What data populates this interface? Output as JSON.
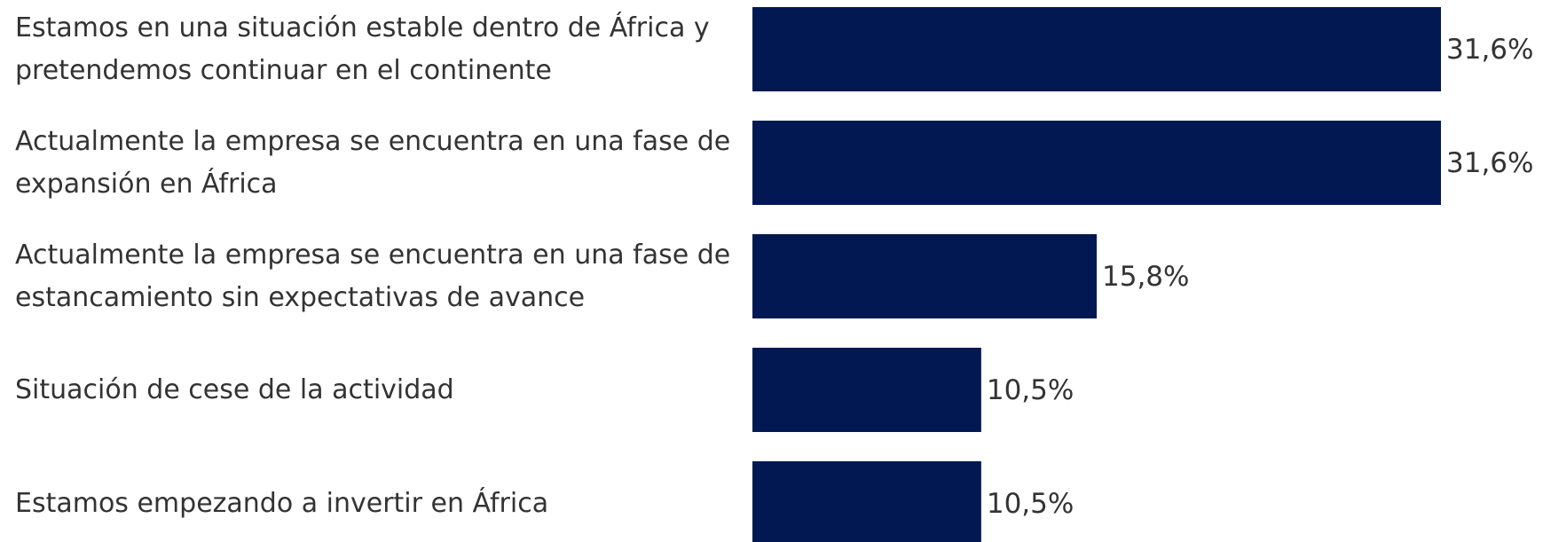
{
  "chart_data": {
    "type": "bar",
    "orientation": "horizontal",
    "categories": [
      "Estamos en una situación estable dentro de África y pretendemos continuar en el continente",
      "Actualmente la empresa se encuentra en una fase de expansión en África",
      "Actualmente la empresa se encuentra en una fase de estancamiento sin expectativas de avance",
      "Situación de cese de la actividad",
      "Estamos empezando a invertir en África"
    ],
    "values": [
      31.6,
      31.6,
      15.8,
      10.5,
      10.5
    ],
    "value_labels": [
      "31,6%",
      "31,6%",
      "15,8%",
      "10,5%",
      "10,5%"
    ],
    "color": "#021852"
  }
}
